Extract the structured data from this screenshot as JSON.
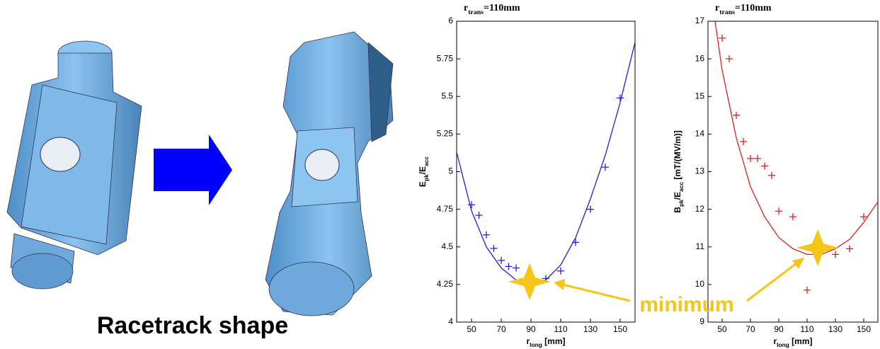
{
  "caption": "Racetrack shape",
  "annotation": "minimum",
  "chart_data": [
    {
      "type": "scatter",
      "title": {
        "parts": [
          {
            "text": "r"
          },
          {
            "text": "trans",
            "sub": true
          },
          {
            "text": "=110mm"
          }
        ]
      },
      "x_label": {
        "parts": [
          {
            "text": "r"
          },
          {
            "text": "long",
            "sub": true
          },
          {
            "text": " [mm]"
          }
        ]
      },
      "y_label": {
        "parts": [
          {
            "text": "E"
          },
          {
            "text": "pk",
            "sub": true
          },
          {
            "text": "/E"
          },
          {
            "text": "acc",
            "sub": true
          }
        ]
      },
      "xlim": [
        40,
        160
      ],
      "xticks": [
        50,
        70,
        90,
        110,
        130,
        150
      ],
      "ylim": [
        4,
        6
      ],
      "yticks": [
        4,
        4.25,
        4.5,
        4.75,
        5,
        5.25,
        5.5,
        5.75,
        6
      ],
      "series": [
        {
          "style": "marker",
          "color": "#2020e0",
          "x": [
            50,
            55,
            60,
            65,
            70,
            75,
            80,
            100,
            110,
            120,
            130,
            140,
            150
          ],
          "values": [
            4.78,
            4.71,
            4.58,
            4.49,
            4.41,
            4.37,
            4.36,
            4.29,
            4.34,
            4.53,
            4.75,
            5.03,
            5.49
          ]
        },
        {
          "style": "line",
          "color": "#2020e0",
          "x": [
            40,
            50,
            60,
            70,
            80,
            90,
            100,
            110,
            120,
            130,
            140,
            150,
            160
          ],
          "values": [
            5.13,
            4.74,
            4.5,
            4.36,
            4.28,
            4.25,
            4.28,
            4.38,
            4.56,
            4.82,
            5.11,
            5.46,
            5.86
          ]
        }
      ]
    },
    {
      "type": "scatter",
      "title": {
        "parts": [
          {
            "text": "r"
          },
          {
            "text": "trans",
            "sub": true
          },
          {
            "text": "=110mm"
          }
        ]
      },
      "x_label": {
        "parts": [
          {
            "text": "r"
          },
          {
            "text": "long",
            "sub": true
          },
          {
            "text": " [mm]"
          }
        ]
      },
      "y_label": {
        "parts": [
          {
            "text": "B"
          },
          {
            "text": "pk",
            "sub": true
          },
          {
            "text": "/E"
          },
          {
            "text": "acc",
            "sub": true
          },
          {
            "text": "  [mT/(MV/m)]"
          }
        ]
      },
      "xlim": [
        40,
        160
      ],
      "xticks": [
        50,
        70,
        90,
        110,
        130,
        150
      ],
      "ylim": [
        9,
        17
      ],
      "yticks": [
        9,
        10,
        11,
        12,
        13,
        14,
        15,
        16,
        17
      ],
      "series": [
        {
          "style": "marker",
          "color": "#e02020",
          "x": [
            50,
            55,
            60,
            65,
            70,
            75,
            80,
            85,
            90,
            100,
            110,
            130,
            140,
            150
          ],
          "values": [
            16.55,
            16,
            14.5,
            13.8,
            13.35,
            13.35,
            13.15,
            12.9,
            11.95,
            11.8,
            9.85,
            10.8,
            10.95,
            11.8
          ]
        },
        {
          "style": "line",
          "color": "#e02020",
          "x": [
            45,
            50,
            60,
            70,
            80,
            90,
            100,
            110,
            120,
            130,
            140,
            150,
            160
          ],
          "values": [
            17,
            15.7,
            13.9,
            12.6,
            11.8,
            11.25,
            10.95,
            10.8,
            10.8,
            10.95,
            11.2,
            11.65,
            12.2
          ]
        }
      ]
    }
  ]
}
